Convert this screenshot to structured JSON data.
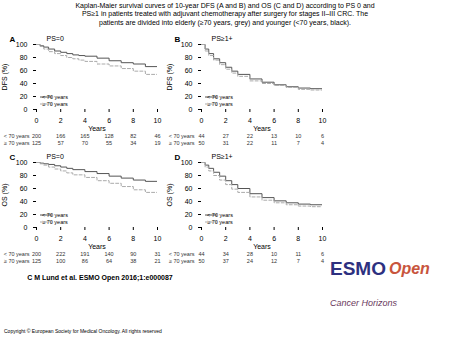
{
  "title": "Kaplan-Maier survival curves of 10-year DFS (A and B) and OS (C and D) according to PS 0 and\nPS≥1 in patients treated with adjuvant chemotherapy after surgery for stages II–III CRC. The\npatients are divided into elderly (≥70 years, grey) and younger (<70 years, black).",
  "annotations": [
    {
      "text": "C M Lund et al. ESMO Open 2016;1:e000087"
    },
    {
      "text": "Copyright © European Society for Medical Oncology. All rights reserved"
    },
    {
      "text": "ESMO",
      "color": "#2d3080"
    },
    {
      "text": "Open",
      "color": "#c8553d"
    },
    {
      "text": "Cancer Horizons",
      "color": "#6b3a5e"
    }
  ],
  "chart_data": [
    {
      "type": "step",
      "title": "A",
      "subtitle": "PS=0",
      "xlabel": "Years",
      "ylabel": "DFS (%)",
      "xlim": [
        0,
        10
      ],
      "xticks": [
        0,
        2,
        4,
        6,
        8,
        10
      ],
      "ylim": [
        0,
        100
      ],
      "yticks": [
        0,
        20,
        40,
        60,
        80,
        100
      ],
      "grid": false,
      "legend": "lower left",
      "series": [
        {
          "name": "< 70 years",
          "color": "#555555",
          "line_style": "solid",
          "x": [
            0,
            0.3,
            0.6,
            1,
            1.5,
            2,
            2.5,
            3,
            3.5,
            4,
            5,
            6,
            7,
            8,
            9,
            10
          ],
          "values": [
            100,
            98,
            96,
            93,
            90,
            88,
            86,
            84,
            83,
            82,
            79,
            75,
            72,
            70,
            66,
            62
          ]
        },
        {
          "name": "≥ 70 years",
          "color": "#aaaaaa",
          "line_style": "dashed",
          "x": [
            0,
            0.3,
            0.6,
            1,
            1.5,
            2,
            2.5,
            3,
            3.5,
            4,
            5,
            6,
            7,
            8,
            9,
            10
          ],
          "values": [
            100,
            97,
            93,
            89,
            86,
            83,
            80,
            78,
            76,
            74,
            70,
            67,
            63,
            59,
            54,
            50
          ]
        }
      ],
      "at_risk": {
        "x": [
          0,
          2,
          4,
          6,
          8,
          10
        ],
        "series": [
          {
            "name": "< 70 years",
            "values": [
              200,
              166,
              165,
              128,
              82,
              46
            ]
          },
          {
            "name": "≥ 70 years",
            "values": [
              125,
              57,
              70,
              55,
              34,
              19
            ]
          }
        ]
      }
    },
    {
      "type": "step",
      "title": "B",
      "subtitle": "PS≥1+",
      "xlabel": "Years",
      "ylabel": "DFS (%)",
      "xlim": [
        0,
        10
      ],
      "xticks": [
        0,
        2,
        4,
        6,
        8,
        10
      ],
      "ylim": [
        0,
        100
      ],
      "yticks": [
        0,
        20,
        40,
        60,
        80,
        100
      ],
      "grid": false,
      "legend": "lower left",
      "series": [
        {
          "name": "< 70 years",
          "color": "#555555",
          "line_style": "solid",
          "x": [
            0,
            0.3,
            0.6,
            1,
            1.5,
            2,
            2.5,
            3,
            4,
            5,
            6,
            7,
            8,
            9,
            10
          ],
          "values": [
            100,
            93,
            86,
            78,
            72,
            65,
            59,
            54,
            47,
            42,
            38,
            35,
            33,
            32,
            31
          ]
        },
        {
          "name": "≥ 70 years",
          "color": "#aaaaaa",
          "line_style": "dashed",
          "x": [
            0,
            0.3,
            0.6,
            1,
            1.5,
            2,
            2.5,
            3,
            4,
            5,
            6,
            7,
            8,
            9,
            10
          ],
          "values": [
            100,
            90,
            83,
            76,
            69,
            62,
            56,
            51,
            44,
            40,
            37,
            34,
            31,
            30,
            30
          ]
        }
      ],
      "at_risk": {
        "x": [
          0,
          2,
          4,
          6,
          8,
          10
        ],
        "series": [
          {
            "name": "< 70 years",
            "values": [
              44,
              27,
              22,
              13,
              10,
              6
            ]
          },
          {
            "name": "≥ 70 years",
            "values": [
              50,
              31,
              22,
              11,
              7,
              4
            ]
          }
        ]
      }
    },
    {
      "type": "step",
      "title": "C",
      "subtitle": "PS=0",
      "xlabel": "Years",
      "ylabel": "OS (%)",
      "xlim": [
        0,
        10
      ],
      "xticks": [
        0,
        2,
        4,
        6,
        8,
        10
      ],
      "ylim": [
        0,
        100
      ],
      "yticks": [
        0,
        20,
        40,
        60,
        80,
        100
      ],
      "grid": false,
      "legend": "lower left",
      "series": [
        {
          "name": "< 70 years",
          "color": "#555555",
          "line_style": "solid",
          "x": [
            0,
            0.3,
            0.6,
            1,
            1.5,
            2,
            2.5,
            3,
            4,
            5,
            6,
            7,
            8,
            9,
            10
          ],
          "values": [
            100,
            99,
            98,
            97,
            95,
            93,
            91,
            89,
            86,
            83,
            79,
            76,
            73,
            71,
            68
          ]
        },
        {
          "name": "≥ 70 years",
          "color": "#aaaaaa",
          "line_style": "dashed",
          "x": [
            0,
            0.3,
            0.6,
            1,
            1.5,
            2,
            2.5,
            3,
            4,
            5,
            6,
            7,
            8,
            9,
            10
          ],
          "values": [
            100,
            98,
            96,
            93,
            90,
            87,
            84,
            81,
            77,
            72,
            68,
            63,
            58,
            54,
            50
          ]
        }
      ],
      "at_risk": {
        "x": [
          0,
          2,
          4,
          6,
          8,
          10
        ],
        "series": [
          {
            "name": "< 70 years",
            "values": [
              200,
              222,
              191,
              140,
              90,
              31
            ]
          },
          {
            "name": "≥ 70 years",
            "values": [
              125,
              100,
              86,
              64,
              38,
              21
            ]
          }
        ]
      }
    },
    {
      "type": "step",
      "title": "D",
      "subtitle": "PS≥1+",
      "xlabel": "Years",
      "ylabel": "OS (%)",
      "xlim": [
        0,
        10
      ],
      "xticks": [
        0,
        2,
        4,
        6,
        8,
        10
      ],
      "ylim": [
        0,
        100
      ],
      "yticks": [
        0,
        20,
        40,
        60,
        80,
        100
      ],
      "grid": false,
      "legend": "lower left",
      "series": [
        {
          "name": "< 70 years",
          "color": "#555555",
          "line_style": "solid",
          "x": [
            0,
            0.3,
            0.6,
            1,
            1.5,
            2,
            2.5,
            3,
            4,
            5,
            6,
            7,
            8,
            9,
            10
          ],
          "values": [
            100,
            96,
            91,
            85,
            79,
            72,
            66,
            60,
            52,
            46,
            41,
            38,
            36,
            35,
            34
          ]
        },
        {
          "name": "≥ 70 years",
          "color": "#aaaaaa",
          "line_style": "dashed",
          "x": [
            0,
            0.3,
            0.6,
            1,
            1.5,
            2,
            2.5,
            3,
            4,
            5,
            6,
            7,
            8,
            9,
            10
          ],
          "values": [
            100,
            93,
            87,
            80,
            73,
            66,
            59,
            54,
            47,
            42,
            38,
            35,
            33,
            32,
            32
          ]
        }
      ],
      "at_risk": {
        "x": [
          0,
          2,
          4,
          6,
          8,
          10
        ],
        "series": [
          {
            "name": "< 70 years",
            "values": [
              44,
              34,
              28,
              10,
              11,
              6
            ]
          },
          {
            "name": "≥ 70 years",
            "values": [
              50,
              37,
              24,
              12,
              7,
              4
            ]
          }
        ]
      }
    }
  ]
}
